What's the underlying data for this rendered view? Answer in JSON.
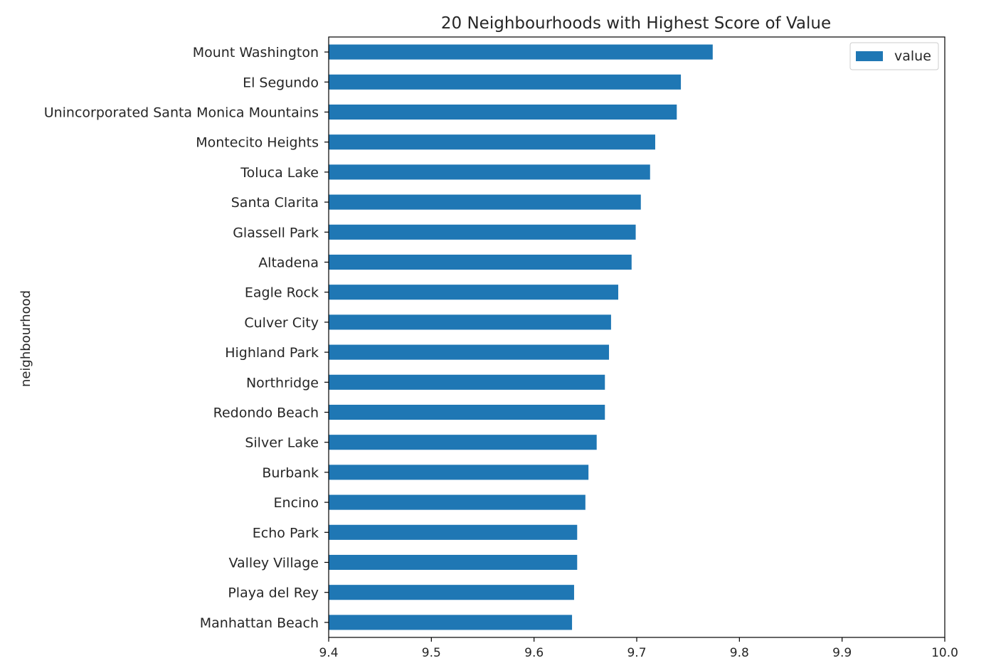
{
  "chart_data": {
    "type": "bar",
    "orientation": "horizontal",
    "title": "20 Neighbourhoods with Highest Score of Value",
    "xlabel": "",
    "ylabel": "neighbourhood",
    "xlim": [
      9.4,
      10.0
    ],
    "xticks": [
      "9.4",
      "9.5",
      "9.6",
      "9.7",
      "9.8",
      "9.9",
      "10.0"
    ],
    "grid": false,
    "legend": {
      "placement": "top-right",
      "entries": [
        "value"
      ]
    },
    "color": "#1f77b4",
    "categories": [
      "Mount Washington",
      "El Segundo",
      "Unincorporated Santa Monica Mountains",
      "Montecito Heights",
      "Toluca Lake",
      "Santa Clarita",
      "Glassell Park",
      "Altadena",
      "Eagle Rock",
      "Culver City",
      "Highland Park",
      "Northridge",
      "Redondo Beach",
      "Silver Lake",
      "Burbank",
      "Encino",
      "Echo Park",
      "Valley Village",
      "Playa del Rey",
      "Manhattan Beach"
    ],
    "series": [
      {
        "name": "value",
        "values": [
          9.774,
          9.743,
          9.739,
          9.718,
          9.713,
          9.704,
          9.699,
          9.695,
          9.682,
          9.675,
          9.673,
          9.669,
          9.669,
          9.661,
          9.653,
          9.65,
          9.642,
          9.642,
          9.639,
          9.637
        ]
      }
    ]
  }
}
